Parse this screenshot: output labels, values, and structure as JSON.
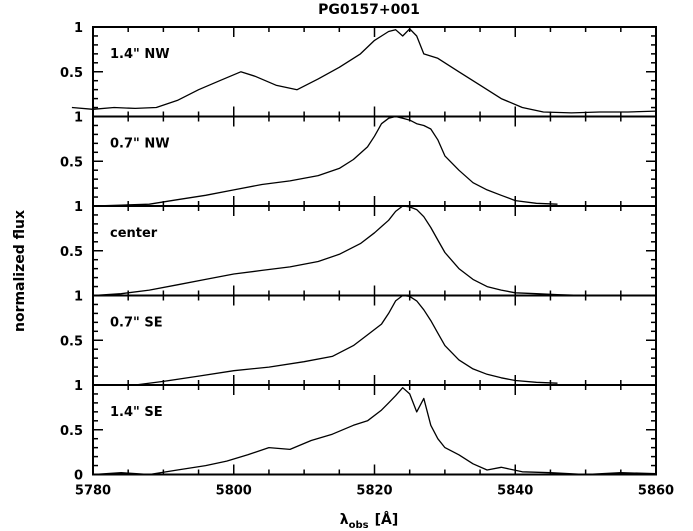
{
  "chart_data": {
    "type": "line",
    "title": "PG0157+001",
    "xlabel": "λ",
    "xlabel_sub": "obs",
    "xlabel_unit": "[Å]",
    "ylabel": "normalized flux",
    "xlim": [
      5780,
      5860
    ],
    "ylim": [
      0,
      1.0
    ],
    "x_ticks": [
      "5780",
      "5800",
      "5820",
      "5840",
      "5860"
    ],
    "y_ticks": [
      "0",
      "0.5",
      "1"
    ],
    "grid": false,
    "legend": "none",
    "panels": [
      {
        "name": "1.4\" NW",
        "x": [
          5777,
          5780,
          5783,
          5786,
          5789,
          5792,
          5795,
          5798,
          5801,
          5803,
          5806,
          5809,
          5812,
          5815,
          5818,
          5820,
          5821,
          5822,
          5823,
          5824,
          5825,
          5826,
          5827,
          5829,
          5832,
          5835,
          5838,
          5841,
          5844,
          5848,
          5852,
          5856,
          5860
        ],
        "y": [
          0.1,
          0.08,
          0.1,
          0.09,
          0.1,
          0.18,
          0.3,
          0.4,
          0.5,
          0.45,
          0.35,
          0.3,
          0.42,
          0.55,
          0.7,
          0.85,
          0.9,
          0.95,
          0.97,
          0.9,
          0.98,
          0.9,
          0.7,
          0.65,
          0.5,
          0.35,
          0.2,
          0.1,
          0.05,
          0.04,
          0.05,
          0.05,
          0.06
        ]
      },
      {
        "name": "0.7\" NW",
        "x": [
          5780,
          5784,
          5788,
          5792,
          5796,
          5800,
          5804,
          5808,
          5812,
          5815,
          5817,
          5819,
          5820,
          5821,
          5822,
          5823,
          5824,
          5825,
          5826,
          5827,
          5828,
          5829,
          5830,
          5832,
          5834,
          5836,
          5838,
          5840,
          5843,
          5846
        ],
        "y": [
          0.0,
          0.01,
          0.02,
          0.07,
          0.12,
          0.18,
          0.24,
          0.28,
          0.34,
          0.42,
          0.52,
          0.66,
          0.78,
          0.92,
          0.98,
          1.0,
          0.98,
          0.96,
          0.92,
          0.9,
          0.86,
          0.74,
          0.56,
          0.4,
          0.26,
          0.18,
          0.12,
          0.06,
          0.03,
          0.02
        ]
      },
      {
        "name": "center",
        "x": [
          5780,
          5784,
          5788,
          5792,
          5796,
          5800,
          5804,
          5808,
          5812,
          5815,
          5818,
          5820,
          5822,
          5823,
          5824,
          5825,
          5826,
          5827,
          5828,
          5829,
          5830,
          5832,
          5834,
          5836,
          5838,
          5840,
          5843,
          5846,
          5850
        ],
        "y": [
          0.0,
          0.02,
          0.06,
          0.12,
          0.18,
          0.24,
          0.28,
          0.32,
          0.38,
          0.46,
          0.58,
          0.7,
          0.84,
          0.94,
          1.0,
          0.99,
          0.96,
          0.88,
          0.76,
          0.62,
          0.48,
          0.3,
          0.18,
          0.1,
          0.06,
          0.03,
          0.02,
          0.01,
          0.0
        ]
      },
      {
        "name": "0.7\" SE",
        "x": [
          5780,
          5786,
          5790,
          5795,
          5800,
          5805,
          5810,
          5814,
          5817,
          5819,
          5821,
          5822,
          5823,
          5824,
          5825,
          5826,
          5827,
          5828,
          5829,
          5830,
          5832,
          5834,
          5836,
          5838,
          5840,
          5843,
          5846
        ],
        "y": [
          0.0,
          0.0,
          0.04,
          0.1,
          0.16,
          0.2,
          0.26,
          0.32,
          0.44,
          0.56,
          0.68,
          0.8,
          0.94,
          1.0,
          0.99,
          0.94,
          0.84,
          0.72,
          0.58,
          0.44,
          0.28,
          0.18,
          0.12,
          0.08,
          0.05,
          0.03,
          0.02
        ]
      },
      {
        "name": "1.4\" SE",
        "x": [
          5780,
          5784,
          5788,
          5792,
          5796,
          5799,
          5802,
          5805,
          5808,
          5811,
          5814,
          5817,
          5819,
          5821,
          5822,
          5823,
          5824,
          5825,
          5826,
          5827,
          5828,
          5829,
          5830,
          5832,
          5834,
          5836,
          5838,
          5841,
          5845,
          5850,
          5855,
          5860
        ],
        "y": [
          0.0,
          0.02,
          0.0,
          0.05,
          0.1,
          0.15,
          0.22,
          0.3,
          0.28,
          0.38,
          0.45,
          0.55,
          0.6,
          0.72,
          0.8,
          0.88,
          0.97,
          0.9,
          0.7,
          0.85,
          0.55,
          0.4,
          0.3,
          0.22,
          0.12,
          0.05,
          0.08,
          0.03,
          0.02,
          0.0,
          0.02,
          0.01
        ]
      }
    ]
  }
}
